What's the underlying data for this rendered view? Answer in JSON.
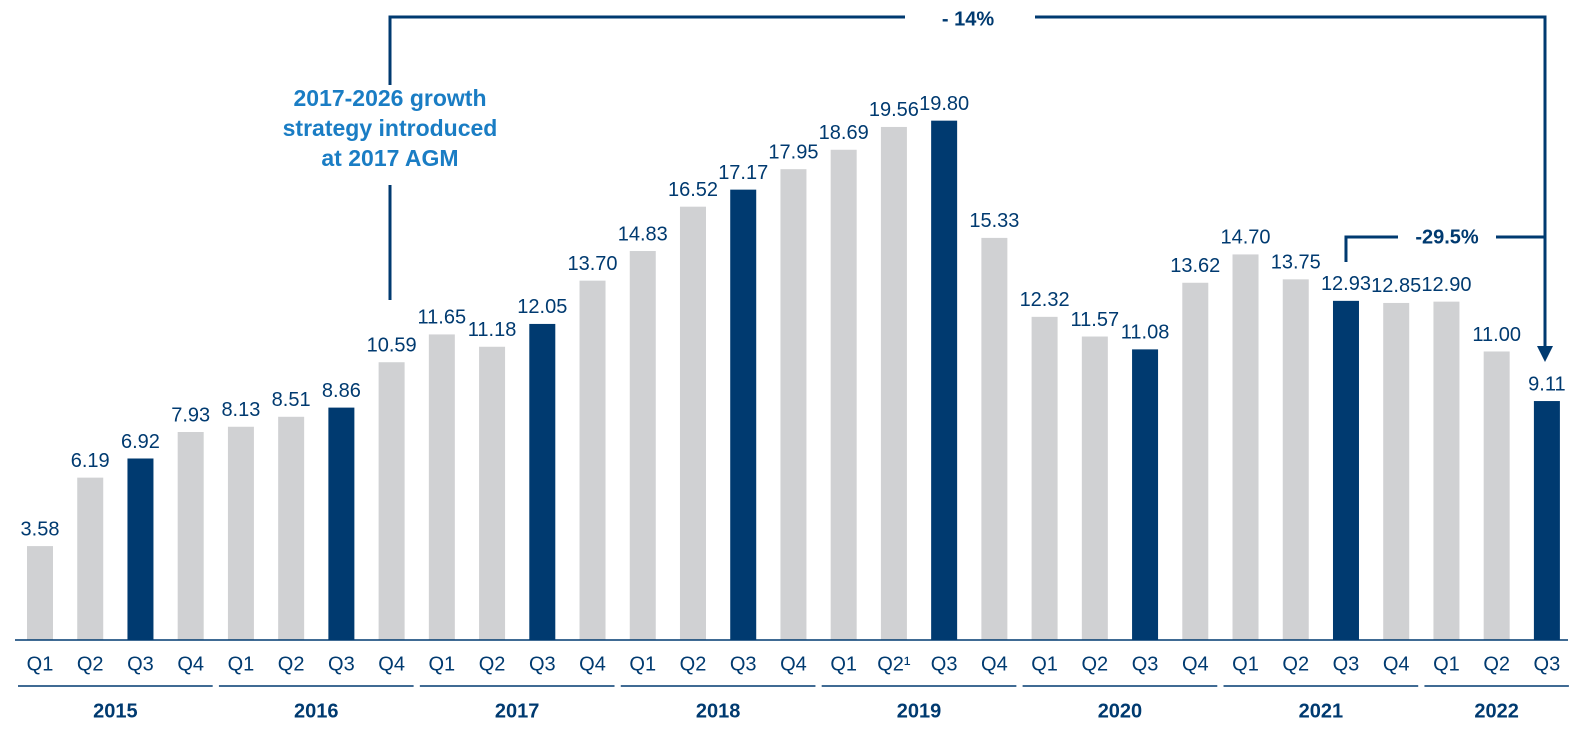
{
  "chart_data": {
    "type": "bar",
    "categories": [
      "Q1",
      "Q2",
      "Q3",
      "Q4",
      "Q1",
      "Q2",
      "Q3",
      "Q4",
      "Q1",
      "Q2",
      "Q3",
      "Q4",
      "Q1",
      "Q2",
      "Q3",
      "Q4",
      "Q1",
      "Q2¹",
      "Q3",
      "Q4",
      "Q1",
      "Q2",
      "Q3",
      "Q4",
      "Q1",
      "Q2",
      "Q3",
      "Q4",
      "Q1",
      "Q2",
      "Q3"
    ],
    "values": [
      3.58,
      6.19,
      6.92,
      7.93,
      8.13,
      8.51,
      8.86,
      10.59,
      11.65,
      11.18,
      12.05,
      13.7,
      14.83,
      16.52,
      17.17,
      17.95,
      18.69,
      19.56,
      19.8,
      15.33,
      12.32,
      11.57,
      11.08,
      13.62,
      14.7,
      13.75,
      12.93,
      12.85,
      12.9,
      11.0,
      9.11
    ],
    "value_labels": [
      "3.58",
      "6.19",
      "6.92",
      "7.93",
      "8.13",
      "8.51",
      "8.86",
      "10.59",
      "11.65",
      "11.18",
      "12.05",
      "13.70",
      "14.83",
      "16.52",
      "17.17",
      "17.95",
      "18.69",
      "19.56",
      "19.80",
      "15.33",
      "12.32",
      "11.57",
      "11.08",
      "13.62",
      "14.70",
      "13.75",
      "12.93",
      "12.85",
      "12.90",
      "11.00",
      "9.11"
    ],
    "colors": [
      "#d0d1d3",
      "#d0d1d3",
      "#003a70",
      "#d0d1d3",
      "#d0d1d3",
      "#d0d1d3",
      "#003a70",
      "#d0d1d3",
      "#d0d1d3",
      "#d0d1d3",
      "#003a70",
      "#d0d1d3",
      "#d0d1d3",
      "#d0d1d3",
      "#003a70",
      "#d0d1d3",
      "#d0d1d3",
      "#d0d1d3",
      "#003a70",
      "#d0d1d3",
      "#d0d1d3",
      "#d0d1d3",
      "#003a70",
      "#d0d1d3",
      "#d0d1d3",
      "#d0d1d3",
      "#003a70",
      "#d0d1d3",
      "#d0d1d3",
      "#d0d1d3",
      "#003a70"
    ],
    "groups": [
      {
        "name": "2015",
        "count": 4
      },
      {
        "name": "2016",
        "count": 4
      },
      {
        "name": "2017",
        "count": 4
      },
      {
        "name": "2018",
        "count": 4
      },
      {
        "name": "2019",
        "count": 4
      },
      {
        "name": "2020",
        "count": 4
      },
      {
        "name": "2021",
        "count": 4
      },
      {
        "name": "2022",
        "count": 3
      }
    ],
    "ylim": [
      0,
      24.4
    ],
    "annotations": [
      {
        "text": "- 14%"
      },
      {
        "text": "-29.5%"
      },
      {
        "lines": [
          "2017-2026 growth",
          "strategy introduced",
          "at 2017 AGM"
        ]
      }
    ]
  }
}
